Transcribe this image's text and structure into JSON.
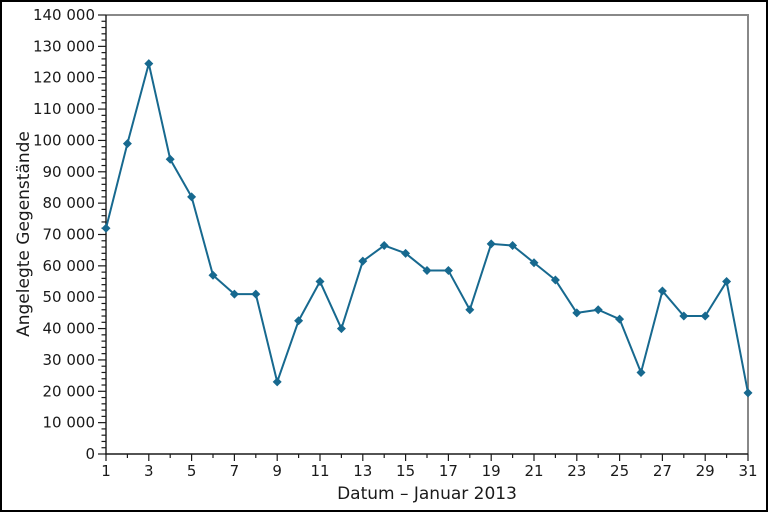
{
  "chart_data": {
    "type": "line",
    "title": "",
    "xlabel": "Datum – Januar 2013",
    "ylabel": "Angelegte Gegenstände",
    "x": [
      1,
      2,
      3,
      4,
      5,
      6,
      7,
      8,
      9,
      10,
      11,
      12,
      13,
      14,
      15,
      16,
      17,
      18,
      19,
      20,
      21,
      22,
      23,
      24,
      25,
      26,
      27,
      28,
      29,
      30,
      31
    ],
    "values": [
      72000,
      99000,
      124500,
      94000,
      82000,
      57000,
      51000,
      51000,
      23000,
      42500,
      55000,
      40000,
      61500,
      66500,
      64000,
      58500,
      58500,
      46000,
      67000,
      66500,
      61000,
      55500,
      45000,
      46000,
      43000,
      26000,
      52000,
      44000,
      44000,
      55000,
      19500
    ],
    "xlim": [
      1,
      31
    ],
    "ylim": [
      0,
      140000
    ],
    "y_major_tick_step": 10000,
    "y_minor_tick_step": 2000,
    "x_major_tick_step": 2,
    "x_minor_tick_step": 1,
    "x_first_labeled_tick": 1,
    "thousands_separator": " ",
    "grid": false,
    "legend": "none",
    "marker": "diamond",
    "colors": {
      "line": "#17698F",
      "marker": "#17698F",
      "axis": "#1a1a1a",
      "spine_secondary": "#888888",
      "text": "#1a1a1a",
      "background": "#ffffff",
      "border": "#000000"
    }
  }
}
